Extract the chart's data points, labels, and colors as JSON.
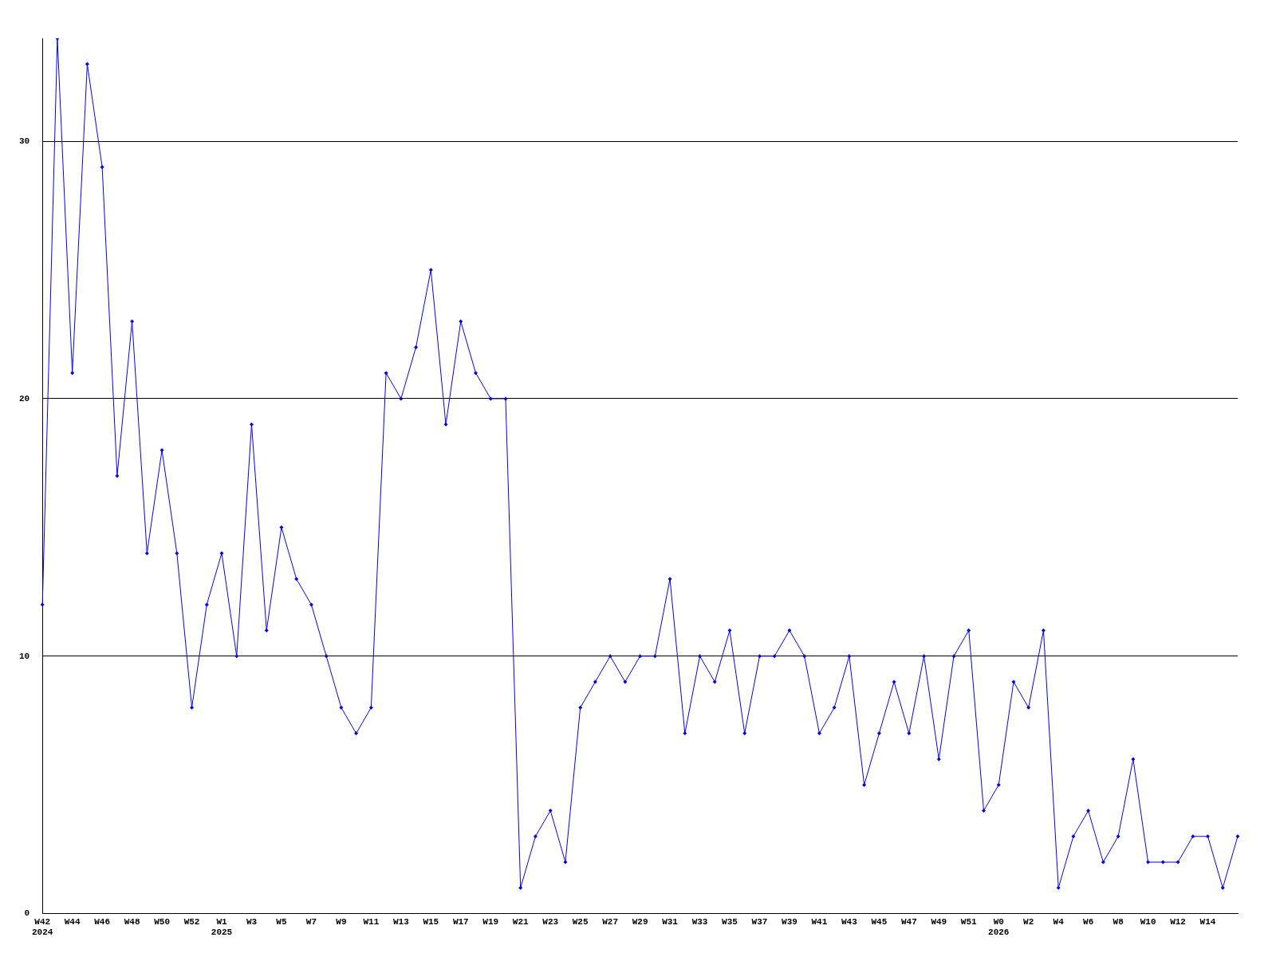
{
  "chart_data": {
    "type": "line",
    "categories": [
      "W42\n2024",
      null,
      "W44",
      null,
      "W46",
      null,
      "W48",
      null,
      "W50",
      null,
      "W52",
      null,
      "W1\n2025",
      null,
      "W3",
      null,
      "W5",
      null,
      "W7",
      null,
      "W9",
      null,
      "W11",
      null,
      "W13",
      null,
      "W15",
      null,
      "W17",
      null,
      "W19",
      null,
      "W21",
      null,
      "W23",
      null,
      "W25",
      null,
      "W27",
      null,
      "W29",
      null,
      "W31",
      null,
      "W33",
      null,
      "W35",
      null,
      "W37",
      null,
      "W39",
      null,
      "W41",
      null,
      "W43",
      null,
      "W45",
      null,
      "W47",
      null,
      "W49",
      null,
      "W51",
      null,
      "W0\n2026",
      null,
      "W2",
      null,
      "W4",
      null,
      "W6",
      null,
      "W8",
      null,
      "W10",
      null,
      "W12",
      null,
      "W14",
      null,
      null
    ],
    "series": [
      {
        "color": "#0000ff",
        "values": [
          12,
          34,
          21,
          33,
          29,
          17,
          23,
          14,
          18,
          14,
          8,
          12,
          14,
          10,
          19,
          11,
          15,
          13,
          12,
          10,
          8,
          7,
          8,
          21,
          20,
          22,
          25,
          19,
          23,
          21,
          20,
          20,
          1,
          3,
          4,
          2,
          8,
          9,
          10,
          9,
          10,
          10,
          13,
          7,
          10,
          9,
          11,
          7,
          10,
          10,
          11,
          10,
          7,
          8,
          10,
          5,
          7,
          9,
          7,
          10,
          6,
          10,
          11,
          4,
          5,
          9,
          8,
          11,
          1,
          3,
          4,
          2,
          3,
          6,
          2,
          2,
          2,
          3,
          3,
          1,
          3
        ]
      }
    ],
    "ylim": [
      0,
      34
    ],
    "yticks": [
      0,
      10,
      20,
      30
    ],
    "grid": "y",
    "legend": false,
    "marker": "diamond",
    "line_style": "solid"
  }
}
